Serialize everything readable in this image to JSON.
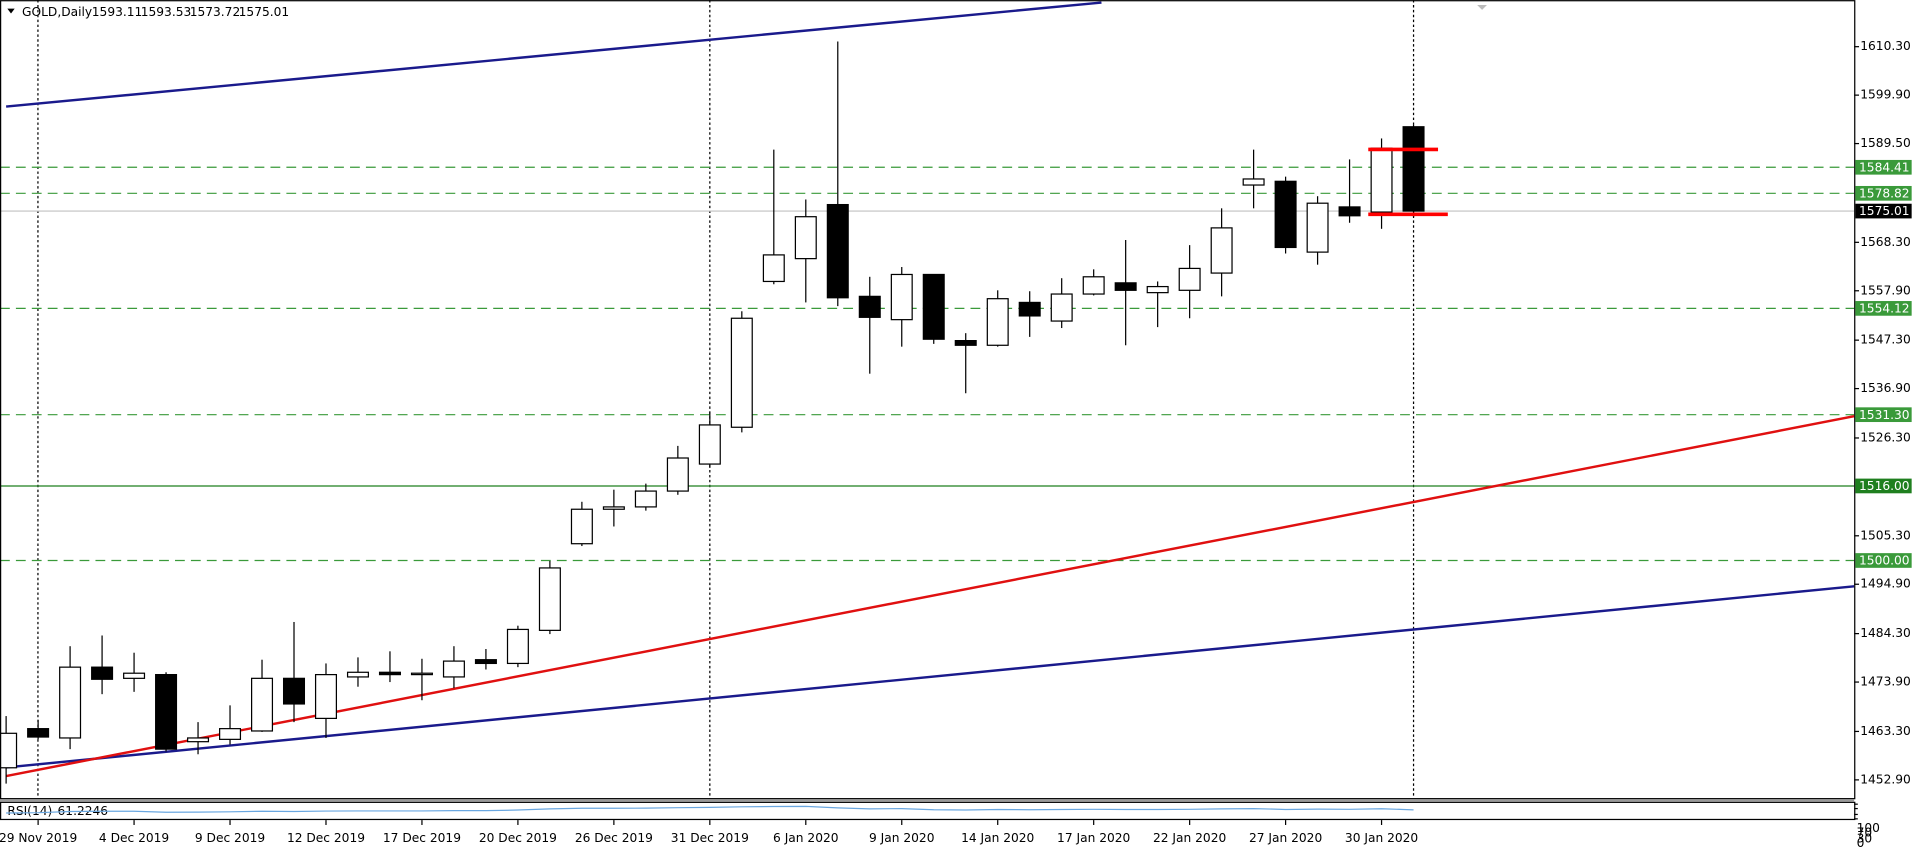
{
  "chart_data": {
    "type": "candlestick",
    "symbol": "GOLD,Daily",
    "categories": [
      null,
      "29 Nov 2019",
      null,
      null,
      "4 Dec 2019",
      null,
      null,
      "9 Dec 2019",
      null,
      null,
      "12 Dec 2019",
      null,
      null,
      "17 Dec 2019",
      null,
      null,
      "20 Dec 2019",
      null,
      null,
      "26 Dec 2019",
      null,
      null,
      "31 Dec 2019",
      null,
      null,
      "6 Jan 2020",
      null,
      null,
      "9 Jan 2020",
      null,
      null,
      "14 Jan 2020",
      null,
      null,
      "17 Jan 2020",
      null,
      null,
      "22 Jan 2020",
      null,
      null,
      "27 Jan 2020",
      null,
      null,
      "30 Jan 2020",
      null
    ],
    "open": [
      1455.5,
      1463.9,
      1461.9,
      1477.1,
      1474.7,
      1475.5,
      1461.1,
      1461.6,
      1463.4,
      1474.7,
      1466.1,
      1475.0,
      1476.0,
      1475.5,
      1475.0,
      1478.7,
      1477.9,
      1485.0,
      1503.6,
      1511.0,
      1511.5,
      1514.9,
      1520.7,
      1528.6,
      1559.9,
      1564.8,
      1576.4,
      1556.7,
      1551.7,
      1561.4,
      1547.2,
      1546.2,
      1555.4,
      1551.4,
      1557.2,
      1559.6,
      1557.5,
      1558.0,
      1561.7,
      1580.6,
      1581.4,
      1566.2,
      1575.9,
      1574.8,
      1593.11
    ],
    "high": [
      1466.6,
      1465.8,
      1481.6,
      1483.9,
      1480.2,
      1476.0,
      1465.3,
      1468.9,
      1478.7,
      1486.8,
      1477.9,
      1479.2,
      1480.5,
      1478.9,
      1481.6,
      1481.0,
      1486.0,
      1499.9,
      1512.6,
      1515.2,
      1516.5,
      1524.6,
      1532.0,
      1553.5,
      1588.2,
      1577.5,
      1611.4,
      1560.9,
      1563.0,
      1561.4,
      1548.8,
      1558.0,
      1557.8,
      1560.6,
      1562.5,
      1568.8,
      1559.9,
      1567.7,
      1575.6,
      1588.2,
      1582.4,
      1578.2,
      1586.1,
      1590.6,
      1593.53
    ],
    "low": [
      1452.1,
      1461.6,
      1459.5,
      1471.3,
      1471.8,
      1459.0,
      1458.4,
      1460.5,
      1463.2,
      1465.3,
      1461.9,
      1472.9,
      1473.9,
      1470.0,
      1472.6,
      1476.6,
      1477.1,
      1484.2,
      1503.1,
      1507.3,
      1510.7,
      1514.1,
      1519.9,
      1527.5,
      1559.3,
      1555.4,
      1554.6,
      1540.1,
      1545.9,
      1546.5,
      1535.9,
      1545.9,
      1548.0,
      1549.9,
      1556.9,
      1546.2,
      1550.1,
      1552.0,
      1556.7,
      1575.6,
      1565.9,
      1563.5,
      1572.5,
      1571.2,
      1573.72
    ],
    "close": [
      1462.9,
      1462.1,
      1477.1,
      1474.5,
      1475.8,
      1459.5,
      1461.9,
      1463.9,
      1474.7,
      1469.2,
      1475.5,
      1476.0,
      1475.5,
      1475.8,
      1478.4,
      1477.9,
      1485.2,
      1498.4,
      1511.0,
      1511.5,
      1514.9,
      1522.0,
      1529.1,
      1552.0,
      1565.6,
      1573.8,
      1556.4,
      1552.2,
      1561.4,
      1547.5,
      1546.2,
      1556.2,
      1552.5,
      1557.2,
      1560.9,
      1558.0,
      1558.8,
      1562.7,
      1571.4,
      1581.9,
      1567.2,
      1576.7,
      1574.0,
      1588.5,
      1575.01
    ],
    "ylim": [
      1449.0,
      1620.3
    ],
    "yticks": [
      {
        "value": 1610.3,
        "label": "1610.30"
      },
      {
        "value": 1599.9,
        "label": "1599.90"
      },
      {
        "value": 1589.5,
        "label": "1589.50"
      },
      {
        "value": 1568.3,
        "label": "1568.30"
      },
      {
        "value": 1557.9,
        "label": "1557.90"
      },
      {
        "value": 1547.3,
        "label": "1547.30"
      },
      {
        "value": 1536.9,
        "label": "1536.90"
      },
      {
        "value": 1526.3,
        "label": "1526.30"
      },
      {
        "value": 1505.3,
        "label": "1505.30"
      },
      {
        "value": 1494.9,
        "label": "1494.90"
      },
      {
        "value": 1484.3,
        "label": "1484.30"
      },
      {
        "value": 1473.9,
        "label": "1473.90"
      },
      {
        "value": 1463.3,
        "label": "1463.30"
      },
      {
        "value": 1452.9,
        "label": "1452.90"
      }
    ],
    "levels": [
      {
        "value": 1584.41,
        "style": "dashed",
        "color": "#3a9a3a"
      },
      {
        "value": 1578.82,
        "style": "dashed",
        "color": "#3a9a3a"
      },
      {
        "value": 1554.12,
        "style": "dashed",
        "color": "#3a9a3a"
      },
      {
        "value": 1531.3,
        "label": "1531.30",
        "style": "dashed",
        "color": "#3a9a3a"
      },
      {
        "value": 1516,
        "label": "1516.00",
        "style": "solid",
        "color": "#1f7f1f"
      },
      {
        "value": 1500,
        "label": "1500.00",
        "style": "dashed",
        "color": "#3a9a3a"
      }
    ],
    "price_line": true,
    "rsi": {
      "name": "RSI(14)",
      "ylim": [
        0,
        100
      ],
      "yticks": [
        0,
        30,
        70,
        100
      ],
      "color": "#6aa7e0",
      "values": [
        40,
        42,
        50,
        52,
        52,
        45,
        46,
        48,
        52,
        50,
        53,
        54,
        54,
        54,
        56,
        56,
        60,
        68,
        72,
        72,
        73,
        76,
        78,
        82,
        84,
        85,
        75,
        68,
        70,
        62,
        60,
        64,
        62,
        64,
        65,
        64,
        64,
        65,
        68,
        70,
        64,
        66,
        65,
        69,
        61.2246
      ]
    }
  }
}
